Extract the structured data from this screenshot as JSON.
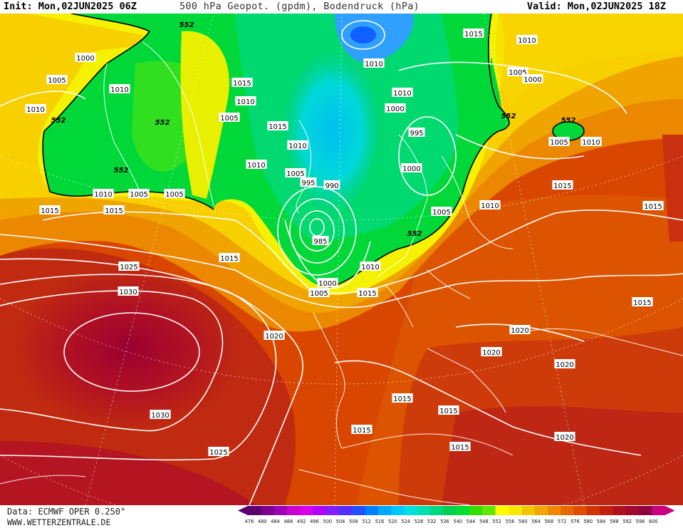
{
  "header": {
    "init": "Init: Mon,02JUN2025 06Z",
    "title": "500 hPa Geopot. (gpdm), Bodendruck (hPa)",
    "valid": "Valid: Mon,02JUN2025 18Z"
  },
  "footer": {
    "data_source": "Data: ECMWF OPER 0.250°",
    "website": "WWW.WETTERZENTRALE.DE"
  },
  "pressure_labels": [
    "1030",
    "1030",
    "1025",
    "1025",
    "1020",
    "1020",
    "1020",
    "1020",
    "1020",
    "1015",
    "1015",
    "1015",
    "1015",
    "1015",
    "1015",
    "1015",
    "1015",
    "1015",
    "1015",
    "1015",
    "1015",
    "1015",
    "1015",
    "1010",
    "1010",
    "1010",
    "1010",
    "1010",
    "1010",
    "1010",
    "1010",
    "1010",
    "1010",
    "1010",
    "1010",
    "1005",
    "1005",
    "1005",
    "1005",
    "1005",
    "1005",
    "1005",
    "1005",
    "1005",
    "1000",
    "1000",
    "1000",
    "1000",
    "1000",
    "995",
    "995",
    "990",
    "985"
  ],
  "geopotential_label": "552",
  "color_scale": {
    "values": [
      "476",
      "480",
      "484",
      "488",
      "492",
      "496",
      "500",
      "504",
      "508",
      "512",
      "516",
      "520",
      "524",
      "528",
      "532",
      "536",
      "540",
      "544",
      "548",
      "552",
      "556",
      "560",
      "564",
      "568",
      "572",
      "576",
      "580",
      "584",
      "588",
      "592",
      "596",
      "600"
    ],
    "colors": [
      "#5a0070",
      "#7a0090",
      "#a000b4",
      "#c800d0",
      "#d800e8",
      "#b000ff",
      "#8020ff",
      "#5030ff",
      "#2050ff",
      "#0080ff",
      "#00a8ff",
      "#00c8ff",
      "#00e0e0",
      "#00e0b0",
      "#00d880",
      "#00d050",
      "#00e030",
      "#30e000",
      "#60e800",
      "#ffff00",
      "#f8e800",
      "#f0c800",
      "#f0a800",
      "#f08800",
      "#e86800",
      "#e04c00",
      "#d03400",
      "#c02010",
      "#b01020",
      "#a00830",
      "#900040",
      "#c80080"
    ]
  }
}
